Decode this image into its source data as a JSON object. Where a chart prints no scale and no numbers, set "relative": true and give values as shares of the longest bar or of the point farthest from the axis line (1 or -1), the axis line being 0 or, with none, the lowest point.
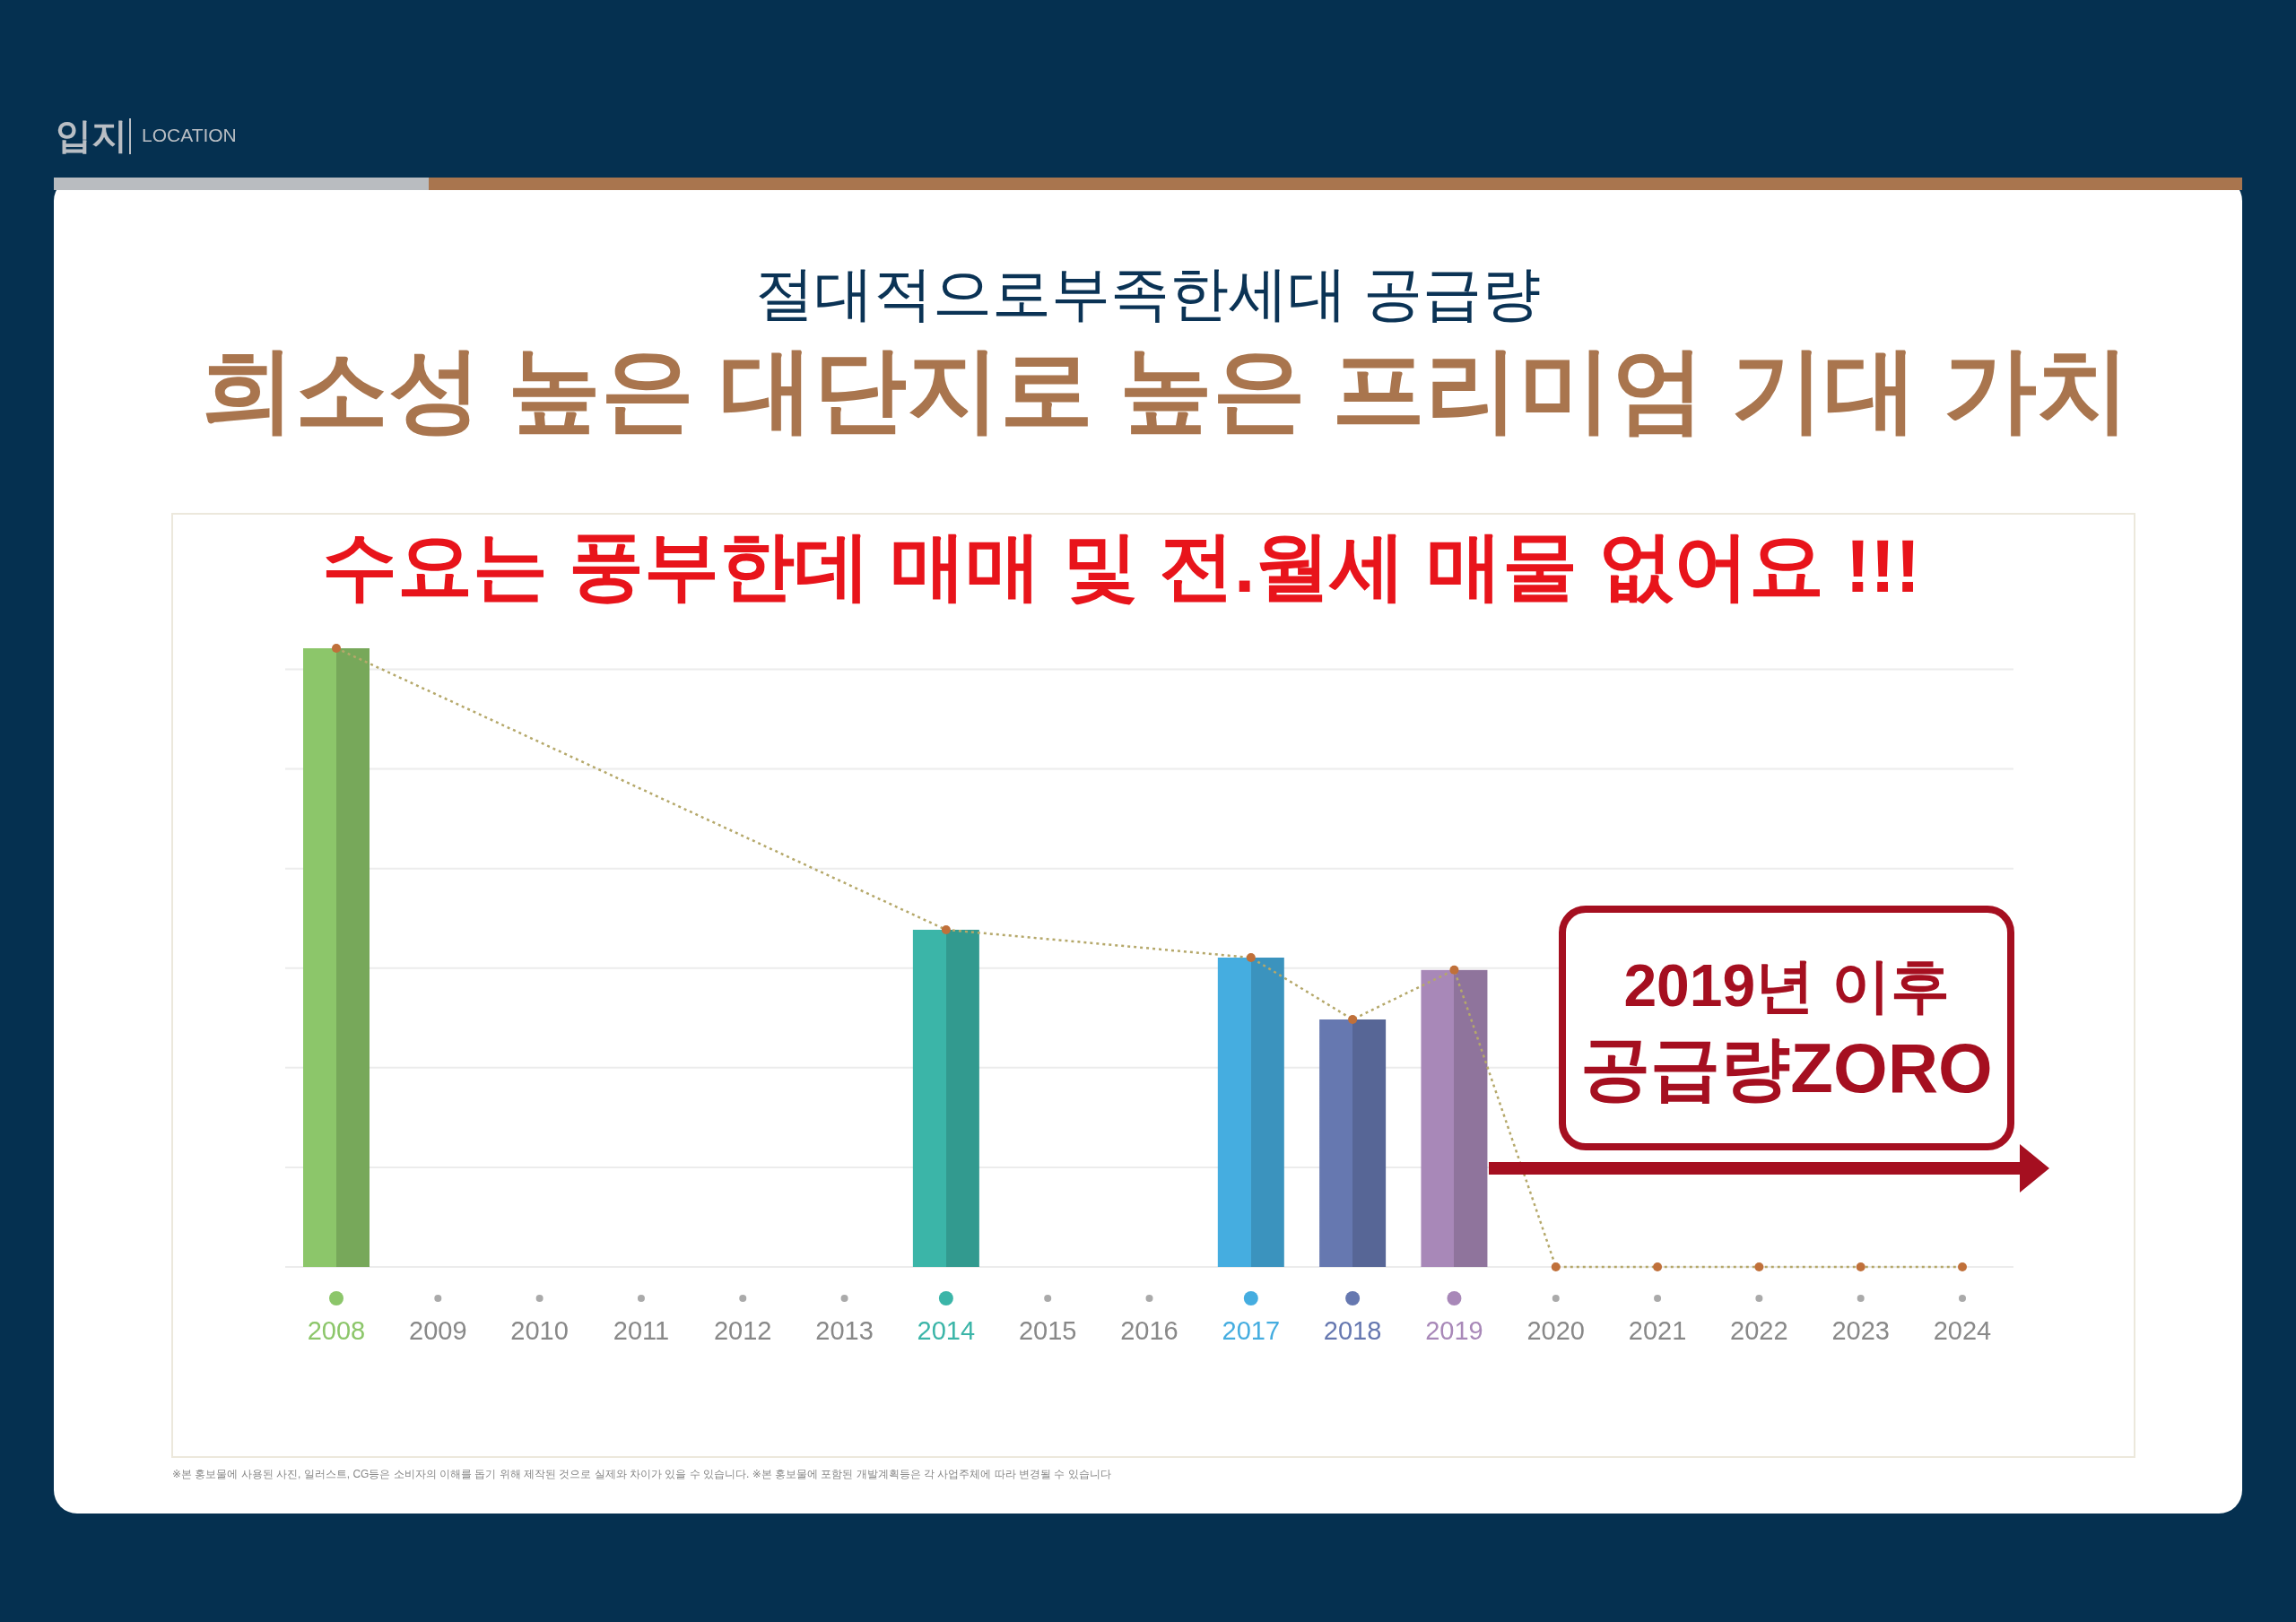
{
  "chart_data": {
    "type": "bar",
    "relative": true,
    "grid": "y",
    "title": "절대적으로부족한세대 공급량",
    "subtitle": "희소성 높은 대단지로 높은 프리미엄 기대 가치",
    "categories": [
      "2008",
      "2009",
      "2010",
      "2011",
      "2012",
      "2013",
      "2014",
      "2015",
      "2016",
      "2017",
      "2018",
      "2019",
      "2020",
      "2021",
      "2022",
      "2023",
      "2024"
    ],
    "series": [
      {
        "colors": [
          "#8cc66a",
          null,
          null,
          null,
          null,
          null,
          "#3bb5a8",
          null,
          null,
          "#45ade0",
          "#6678b0",
          "#a888b8",
          null,
          null,
          null,
          null,
          null
        ],
        "values": [
          1,
          null,
          null,
          null,
          null,
          null,
          0.545,
          null,
          null,
          0.5,
          0.4,
          0.48,
          null,
          null,
          null,
          null,
          null
        ]
      },
      {
        "type": "line",
        "color": "#b5a86a",
        "marker": "circle",
        "line_style": "dotted",
        "values": [
          1,
          null,
          null,
          null,
          null,
          null,
          0.545,
          null,
          null,
          0.5,
          0.4,
          0.48,
          0,
          0,
          0,
          0,
          0
        ]
      }
    ],
    "annotations": [
      "입지",
      "LOCATION",
      "수요는 풍부한데 매매 및 전.월세  매물 없어요 !!!",
      "2019년 이후",
      "공급량ZORO",
      "※본 홍보물에 사용된 사진, 일러스트, CG등은 소비자의 이해를 돕기 위해 제작된 것으로 실제와 차이가 있을 수 있습니다. ※본 홍보물에 포함된 개발계획등은 각 사업주체에 따라 변경될 수 있습니다"
    ]
  }
}
